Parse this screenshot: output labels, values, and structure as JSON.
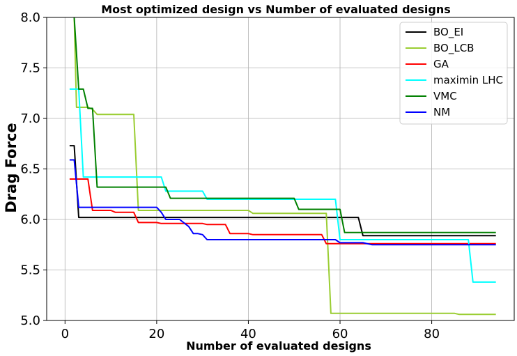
{
  "chart_data": {
    "type": "line",
    "title": "Most optimized design vs Number of evaluated designs",
    "xlabel": "Number of evaluated designs",
    "ylabel": "Drag Force",
    "xlim": [
      -4,
      98
    ],
    "ylim": [
      5.0,
      8.0
    ],
    "xticks": [
      0,
      20,
      40,
      60,
      80
    ],
    "xtick_labels": [
      "0",
      "20",
      "40",
      "60",
      "80"
    ],
    "yticks": [
      5.0,
      5.5,
      6.0,
      6.5,
      7.0,
      7.5,
      8.0
    ],
    "ytick_labels": [
      "5.0",
      "5.5",
      "6.0",
      "6.5",
      "7.0",
      "7.5",
      "8.0"
    ],
    "grid": true,
    "legend_position": "top-right",
    "series": [
      {
        "name": "BO_EI",
        "color": "#000000",
        "x": [
          1,
          2,
          3,
          64,
          65,
          94
        ],
        "y": [
          6.73,
          6.73,
          6.02,
          6.02,
          5.84,
          5.84
        ]
      },
      {
        "name": "BO_LCB",
        "color": "#9acd32",
        "x": [
          2,
          2.5,
          5,
          6,
          7,
          15,
          16,
          40,
          41,
          57,
          58,
          85,
          86,
          94
        ],
        "y": [
          8.0,
          7.11,
          7.11,
          7.09,
          7.04,
          7.04,
          6.09,
          6.09,
          6.06,
          6.06,
          5.07,
          5.07,
          5.06,
          5.06
        ]
      },
      {
        "name": "GA",
        "color": "#ff0000",
        "x": [
          1,
          5,
          6,
          10,
          11,
          15,
          16,
          20,
          21,
          30,
          31,
          35,
          36,
          40,
          41,
          56,
          57,
          94
        ],
        "y": [
          6.4,
          6.4,
          6.09,
          6.09,
          6.07,
          6.07,
          5.97,
          5.97,
          5.96,
          5.96,
          5.95,
          5.95,
          5.86,
          5.86,
          5.85,
          5.85,
          5.76,
          5.76
        ]
      },
      {
        "name": "maximin LHC",
        "color": "#00ffff",
        "x": [
          1,
          3,
          4,
          21,
          22,
          30,
          31,
          59,
          60,
          88,
          89,
          94
        ],
        "y": [
          7.29,
          7.29,
          6.42,
          6.42,
          6.28,
          6.28,
          6.2,
          6.2,
          5.8,
          5.8,
          5.38,
          5.38
        ]
      },
      {
        "name": "VMC",
        "color": "#008000",
        "x": [
          2,
          3,
          4,
          5,
          6,
          7,
          22,
          23,
          50,
          51,
          60,
          61,
          94
        ],
        "y": [
          8.0,
          7.29,
          7.29,
          7.1,
          7.1,
          6.32,
          6.32,
          6.21,
          6.21,
          6.1,
          6.1,
          5.87,
          5.87
        ]
      },
      {
        "name": "NM",
        "color": "#0000ff",
        "x": [
          1,
          2,
          3,
          20,
          21,
          22,
          25,
          27,
          28,
          29,
          30,
          31,
          59,
          60,
          65,
          67,
          94
        ],
        "y": [
          6.59,
          6.59,
          6.12,
          6.12,
          6.07,
          6.0,
          6.0,
          5.93,
          5.86,
          5.86,
          5.85,
          5.8,
          5.8,
          5.77,
          5.77,
          5.75,
          5.75
        ]
      }
    ]
  }
}
